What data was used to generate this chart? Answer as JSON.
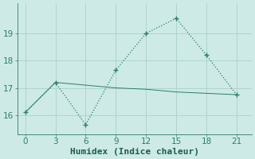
{
  "line1_x": [
    0,
    3,
    6,
    9,
    12,
    15,
    18,
    21
  ],
  "line1_y": [
    16.1,
    17.2,
    15.65,
    17.65,
    19.0,
    19.55,
    18.2,
    16.75
  ],
  "line2_x": [
    0,
    3,
    6,
    9,
    12,
    15,
    18,
    21
  ],
  "line2_y": [
    16.1,
    17.2,
    17.1,
    17.0,
    16.95,
    16.85,
    16.8,
    16.75
  ],
  "line_color": "#2a7d6e",
  "bg_color": "#ceeae6",
  "grid_color": "#b0d4ce",
  "xlabel": "Humidex (Indice chaleur)",
  "xlim": [
    -0.8,
    22.5
  ],
  "ylim": [
    15.3,
    20.1
  ],
  "xticks": [
    0,
    3,
    6,
    9,
    12,
    15,
    18,
    21
  ],
  "yticks": [
    16,
    17,
    18,
    19
  ],
  "xlabel_fontsize": 8,
  "tick_fontsize": 7.5
}
